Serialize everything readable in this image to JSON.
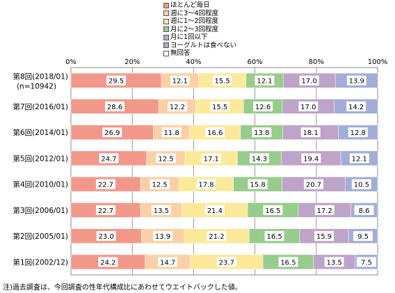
{
  "chart_data": {
    "type": "bar",
    "orientation": "horizontal",
    "stacked": true,
    "categories": [
      "第8回(2018/01)",
      "第7回(2016/01)",
      "第6回(2014/01)",
      "第5回(2012/01)",
      "第4回(2010/01)",
      "第3回(2006/01)",
      "第2回(2005/01)",
      "第1回(2002/12)"
    ],
    "category_sublabels": [
      "(n=10942)",
      "",
      "",
      "",
      "",
      "",
      "",
      ""
    ],
    "series": [
      {
        "name": "ほとんど毎日",
        "color": "#F2988A",
        "values": [
          29.5,
          28.6,
          26.9,
          24.7,
          22.7,
          22.7,
          23.0,
          24.2
        ]
      },
      {
        "name": "週に3～4回程度",
        "color": "#FBD0A6",
        "values": [
          12.1,
          12.2,
          11.8,
          12.5,
          12.5,
          13.5,
          13.9,
          14.7
        ]
      },
      {
        "name": "週に1～2回程度",
        "color": "#FDE99A",
        "values": [
          15.5,
          15.5,
          16.6,
          17.1,
          17.8,
          21.4,
          21.2,
          23.7
        ]
      },
      {
        "name": "月に2～3回程度",
        "color": "#97CC8C",
        "values": [
          12.1,
          12.6,
          13.8,
          14.3,
          15.8,
          16.5,
          16.5,
          16.5
        ]
      },
      {
        "name": "月に1回以下",
        "color": "#BEA4C9",
        "values": [
          17.0,
          17.0,
          18.1,
          19.4,
          20.7,
          17.2,
          15.9,
          13.5
        ]
      },
      {
        "name": "ヨーグルトは食べない",
        "color": "#A3ADD8",
        "values": [
          13.9,
          14.2,
          12.8,
          12.1,
          10.5,
          8.6,
          9.5,
          7.5
        ]
      },
      {
        "name": "無回答",
        "color": "#FFFFFF",
        "values": [
          0,
          0,
          0,
          0,
          0,
          0,
          0,
          0
        ]
      }
    ],
    "data_labels": [
      [
        "29.5",
        "12.1",
        "15.5",
        "12.1",
        "17.0",
        "13.9"
      ],
      [
        "28.6",
        "12.2",
        "15.5",
        "12.6",
        "17.0",
        "14.2"
      ],
      [
        "26.9",
        "11.8",
        "16.6",
        "13.8",
        "18.1",
        "12.8"
      ],
      [
        "24.7",
        "12.5",
        "17.1",
        "14.3",
        "19.4",
        "12.1"
      ],
      [
        "22.7",
        "12.5",
        "17.8",
        "15.8",
        "20.7",
        "10.5"
      ],
      [
        "22.7",
        "13.5",
        "21.4",
        "16.5",
        "17.2",
        "8.6"
      ],
      [
        "23.0",
        "13.9",
        "21.2",
        "16.5",
        "15.9",
        "9.5"
      ],
      [
        "24.2",
        "14.7",
        "23.7",
        "16.5",
        "13.5",
        "7.5"
      ]
    ],
    "x_ticks": [
      "0%",
      "20%",
      "40%",
      "60%",
      "80%",
      "100%"
    ],
    "xlim": [
      0,
      100
    ],
    "grid": true,
    "legend_position": "top"
  },
  "footnote": "注)過去調査は、今回調査の性年代構成比にあわせてウエイトバックした値。"
}
